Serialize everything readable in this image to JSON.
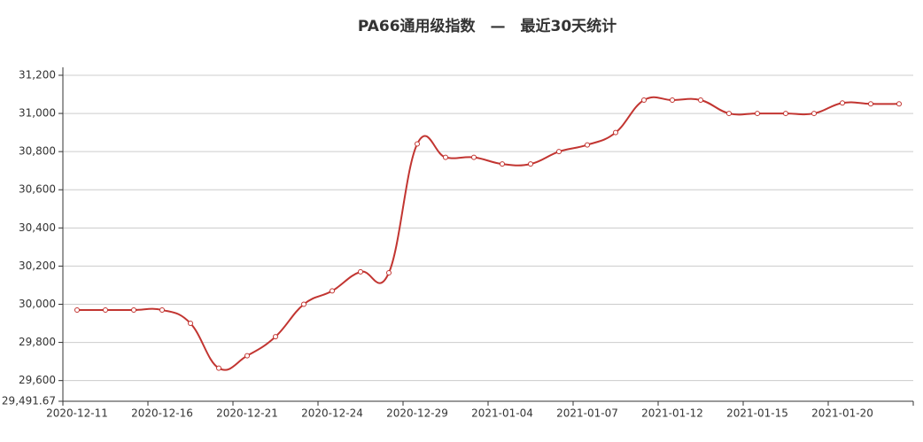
{
  "chart_data": {
    "type": "line",
    "title": "PA66通用级指数　—　最近30天统计",
    "categories": [
      "2020-12-11",
      null,
      null,
      "2020-12-16",
      null,
      null,
      "2020-12-21",
      null,
      null,
      "2020-12-24",
      null,
      null,
      "2020-12-29",
      null,
      null,
      "2021-01-04",
      null,
      null,
      "2021-01-07",
      null,
      null,
      "2021-01-12",
      null,
      null,
      "2021-01-15",
      null,
      null,
      "2021-01-20",
      null,
      null
    ],
    "series": [
      {
        "color": "#c23531",
        "values": [
          29970,
          29970,
          29970,
          29970,
          29900,
          29665,
          29730,
          29830,
          30000,
          30070,
          30170,
          30165,
          30840,
          30770,
          30770,
          30735,
          30735,
          30800,
          30835,
          30900,
          31070,
          31070,
          31070,
          31000,
          31000,
          31000,
          31000,
          31055,
          31050,
          31050
        ]
      }
    ],
    "ylim": [
      29491.67,
      31241.67
    ],
    "yticks": [
      {
        "value": 29491.67,
        "label": "29,491.67"
      },
      {
        "value": 29600,
        "label": "29,600"
      },
      {
        "value": 29800,
        "label": "29,800"
      },
      {
        "value": 30000,
        "label": "30,000"
      },
      {
        "value": 30200,
        "label": "30,200"
      },
      {
        "value": 30400,
        "label": "30,400"
      },
      {
        "value": 30600,
        "label": "30,600"
      },
      {
        "value": 30800,
        "label": "30,800"
      },
      {
        "value": 31000,
        "label": "31,000"
      },
      {
        "value": 31200,
        "label": "31,200"
      }
    ],
    "grid": true,
    "smooth": true
  }
}
